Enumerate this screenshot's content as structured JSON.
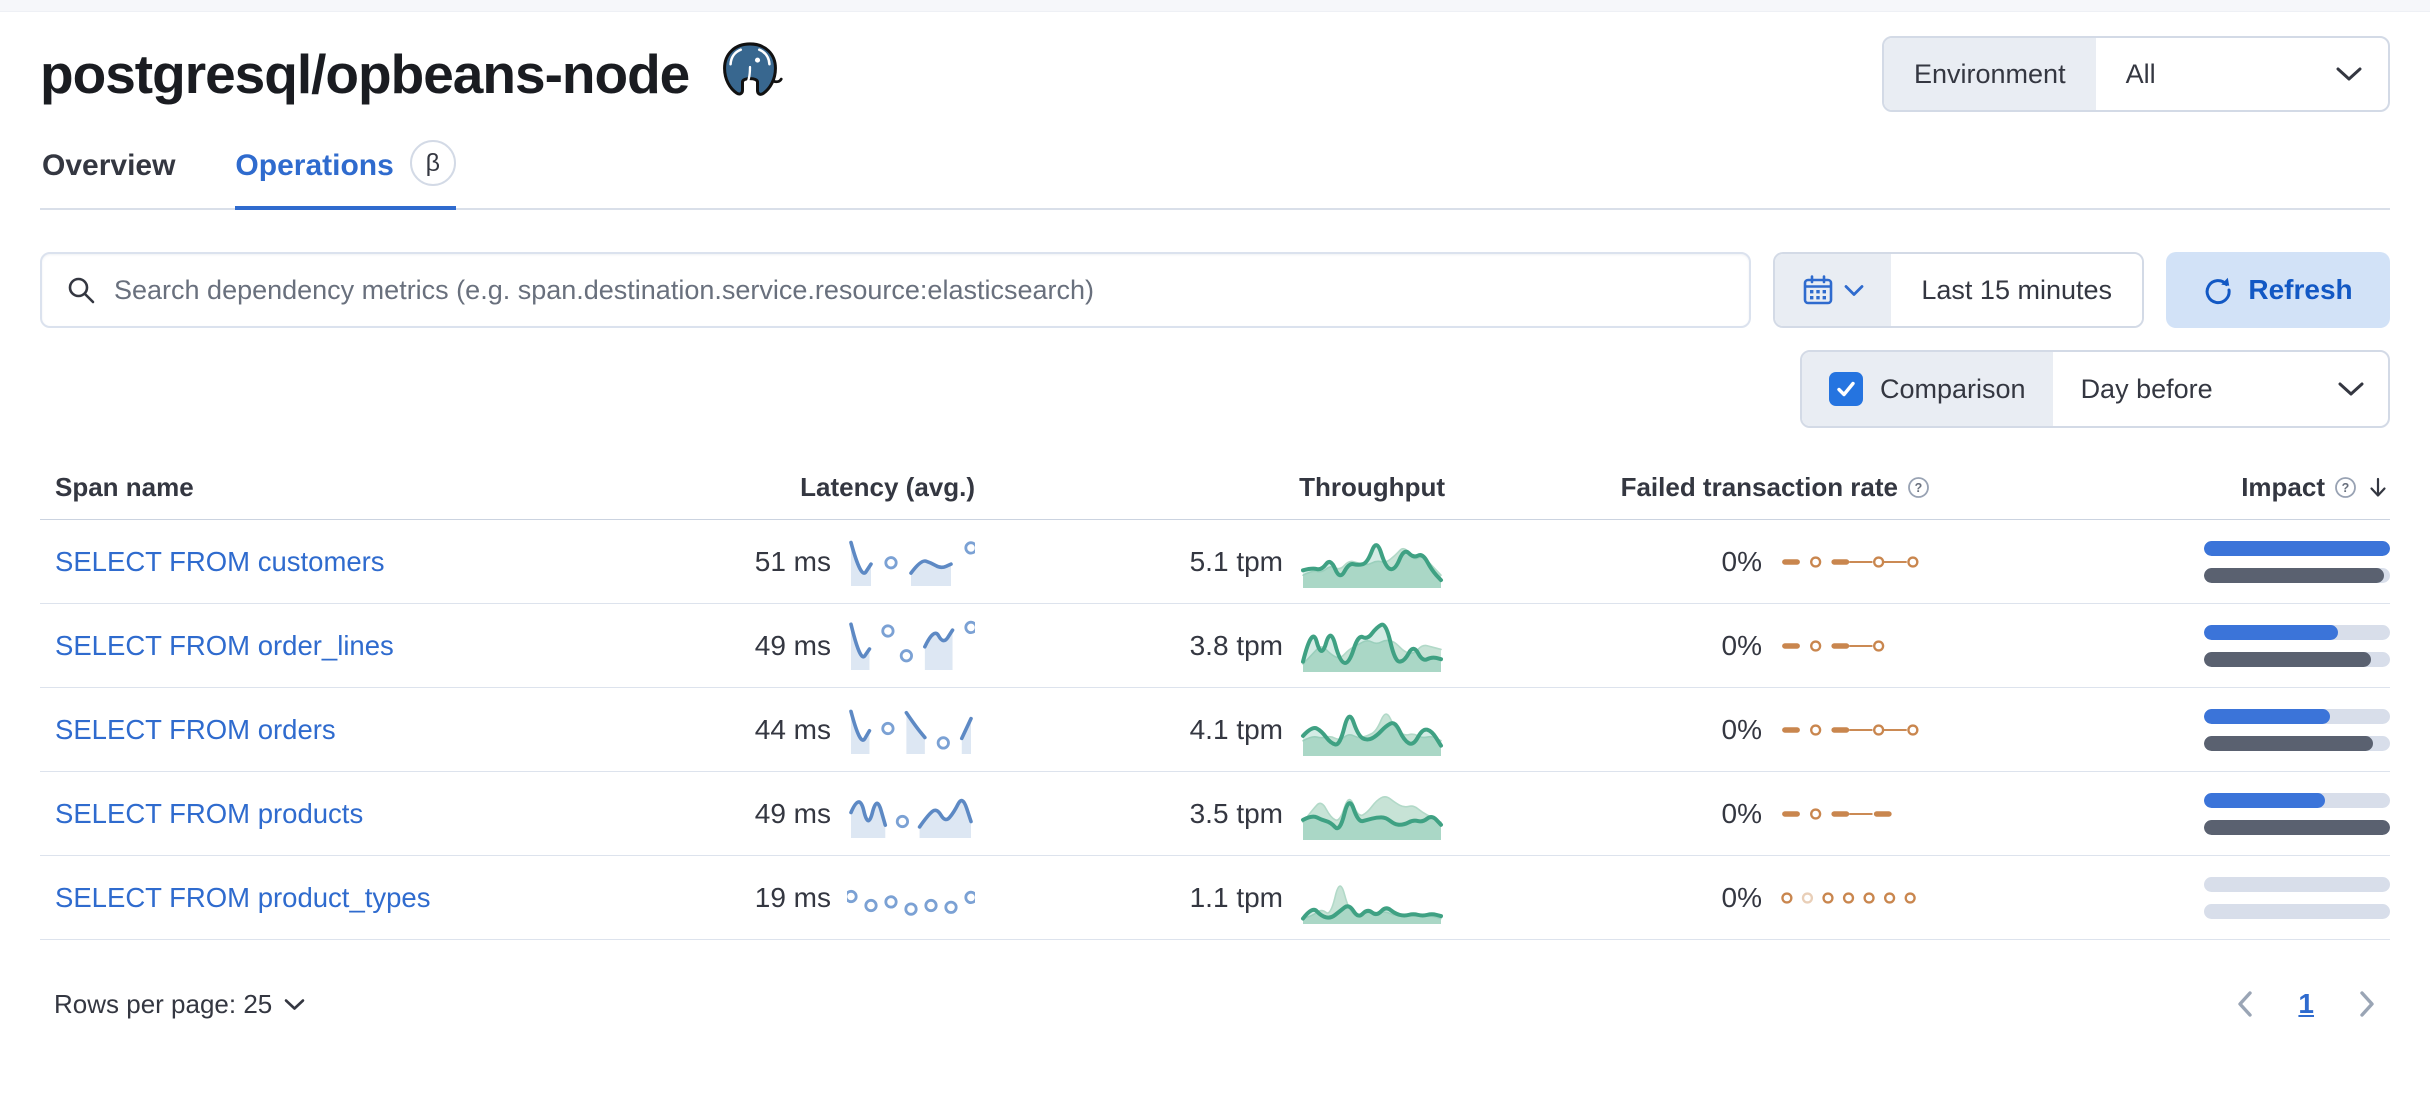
{
  "header": {
    "title": "postgresql/opbeans-node",
    "environment_label": "Environment",
    "environment_value": "All"
  },
  "tabs": {
    "overview": "Overview",
    "operations": "Operations",
    "beta_badge": "β"
  },
  "toolbar": {
    "search_placeholder": "Search dependency metrics (e.g. span.destination.service.resource:elasticsearch)",
    "time_range": "Last 15 minutes",
    "refresh_label": "Refresh",
    "comparison_label": "Comparison",
    "comparison_checked": true,
    "comparison_value": "Day before"
  },
  "table": {
    "headers": {
      "span_name": "Span name",
      "latency": "Latency (avg.)",
      "throughput": "Throughput",
      "failed_rate": "Failed transaction rate",
      "impact": "Impact"
    },
    "rows": [
      {
        "span_name": "SELECT FROM customers",
        "latency": "51 ms",
        "throughput": "5.1 tpm",
        "failed_rate": "0%",
        "latency_spark": [
          0.9,
          0.08,
          0.42,
          null,
          0.45,
          null,
          0.22,
          0.52,
          0.45,
          0.32,
          0.42,
          null,
          0.78
        ],
        "throughput_spark": {
          "current": [
            0.3,
            0.35,
            0.3,
            0.55,
            0.1,
            0.45,
            0.4,
            0.45,
            0.95,
            0.35,
            0.3,
            0.75,
            0.55,
            0.65,
            0.3,
            0.1
          ],
          "previous": [
            0.2,
            0.3,
            0.25,
            0.4,
            0.3,
            0.5,
            0.45,
            0.4,
            0.5,
            0.45,
            0.6,
            0.8,
            0.5,
            0.6,
            0.4,
            0.2
          ]
        },
        "failed_spark": [
          "dash",
          "dot",
          "dash",
          "link",
          "dot",
          "link",
          "dot"
        ],
        "impact": {
          "current": 100,
          "previous": 97
        }
      },
      {
        "span_name": "SELECT FROM order_lines",
        "latency": "49 ms",
        "throughput": "3.8 tpm",
        "failed_rate": "0%",
        "latency_spark": [
          0.95,
          0.1,
          0.4,
          null,
          0.8,
          null,
          0.25,
          null,
          0.45,
          0.88,
          0.5,
          0.82,
          null,
          0.88
        ],
        "throughput_spark": {
          "current": [
            0.15,
            0.9,
            0.2,
            0.85,
            0.15,
            0.1,
            0.7,
            0.6,
            0.85,
            0.95,
            0.15,
            0.15,
            0.5,
            0.15,
            0.25,
            0.2
          ],
          "previous": [
            0.1,
            0.3,
            0.5,
            0.3,
            0.2,
            0.4,
            0.5,
            0.6,
            0.5,
            0.6,
            0.55,
            0.35,
            0.3,
            0.5,
            0.45,
            0.4
          ]
        },
        "failed_spark": [
          "dash",
          "dot",
          "dash",
          "link",
          "dot"
        ],
        "impact": {
          "current": 72,
          "previous": 90
        }
      },
      {
        "span_name": "SELECT FROM orders",
        "latency": "44 ms",
        "throughput": "4.1 tpm",
        "failed_rate": "0%",
        "latency_spark": [
          0.88,
          0.1,
          0.45,
          null,
          0.5,
          null,
          0.85,
          0.55,
          0.3,
          null,
          0.18,
          null,
          0.28,
          0.72
        ],
        "throughput_spark": {
          "current": [
            0.35,
            0.55,
            0.45,
            0.2,
            0.15,
            0.9,
            0.35,
            0.25,
            0.35,
            0.55,
            0.65,
            0.25,
            0.15,
            0.5,
            0.45,
            0.15
          ],
          "previous": [
            0.25,
            0.35,
            0.3,
            0.35,
            0.25,
            0.4,
            0.3,
            0.35,
            0.45,
            0.9,
            0.5,
            0.35,
            0.4,
            0.3,
            0.35,
            0.25
          ]
        },
        "failed_spark": [
          "dash",
          "dot",
          "dash",
          "link",
          "dot",
          "link",
          "dot"
        ],
        "impact": {
          "current": 68,
          "previous": 91
        }
      },
      {
        "span_name": "SELECT FROM products",
        "latency": "49 ms",
        "throughput": "3.5 tpm",
        "failed_rate": "0%",
        "latency_spark": [
          0.5,
          0.95,
          0.12,
          0.88,
          0.22,
          null,
          0.3,
          null,
          0.18,
          0.45,
          0.6,
          0.28,
          0.5,
          0.88,
          0.3
        ],
        "throughput_spark": {
          "current": [
            0.35,
            0.45,
            0.35,
            0.3,
            0.1,
            0.85,
            0.3,
            0.35,
            0.4,
            0.4,
            0.25,
            0.25,
            0.35,
            0.3,
            0.45,
            0.25
          ],
          "previous": [
            0.3,
            0.55,
            0.75,
            0.4,
            0.3,
            0.9,
            0.4,
            0.5,
            0.75,
            0.85,
            0.7,
            0.6,
            0.65,
            0.5,
            0.4,
            0.3
          ]
        },
        "failed_spark": [
          "dash",
          "dot",
          "dash",
          "link",
          "dash"
        ],
        "impact": {
          "current": 65,
          "previous": 100
        }
      },
      {
        "span_name": "SELECT FROM product_types",
        "latency": "19 ms",
        "throughput": "1.1 tpm",
        "failed_rate": "0%",
        "latency_spark": [
          0.5,
          null,
          0.3,
          null,
          0.38,
          null,
          0.22,
          null,
          0.3,
          null,
          0.26,
          null,
          0.48
        ],
        "throughput_spark": {
          "current": [
            0.05,
            0.3,
            0.1,
            0.05,
            0.2,
            0.35,
            0.05,
            0.25,
            0.1,
            0.3,
            0.15,
            0.1,
            0.15,
            0.1,
            0.15,
            0.1
          ],
          "previous": [
            0.05,
            0.1,
            0.25,
            0.1,
            0.9,
            0.2,
            0.1,
            0.2,
            0.15,
            0.2,
            0.1,
            0.15,
            0.1,
            0.1,
            0.1,
            0.05
          ]
        },
        "failed_spark": [
          "dot",
          "dotf",
          "dot",
          "dot",
          "dot",
          "dot",
          "dot"
        ],
        "impact": {
          "current": 0,
          "previous": 0
        }
      }
    ]
  },
  "footer": {
    "rows_per_page_label": "Rows per page: 25",
    "current_page": "1"
  },
  "icons": {
    "question_mark": "?"
  },
  "colors": {
    "link_blue": "#2f6bce",
    "impact_blue": "#3b74d9",
    "impact_prev_gray": "#5a6170",
    "latency_blue": "#5d89c4",
    "throughput_green": "#3fa183",
    "failed_orange": "#c9864e",
    "border": "#d3dae6"
  }
}
